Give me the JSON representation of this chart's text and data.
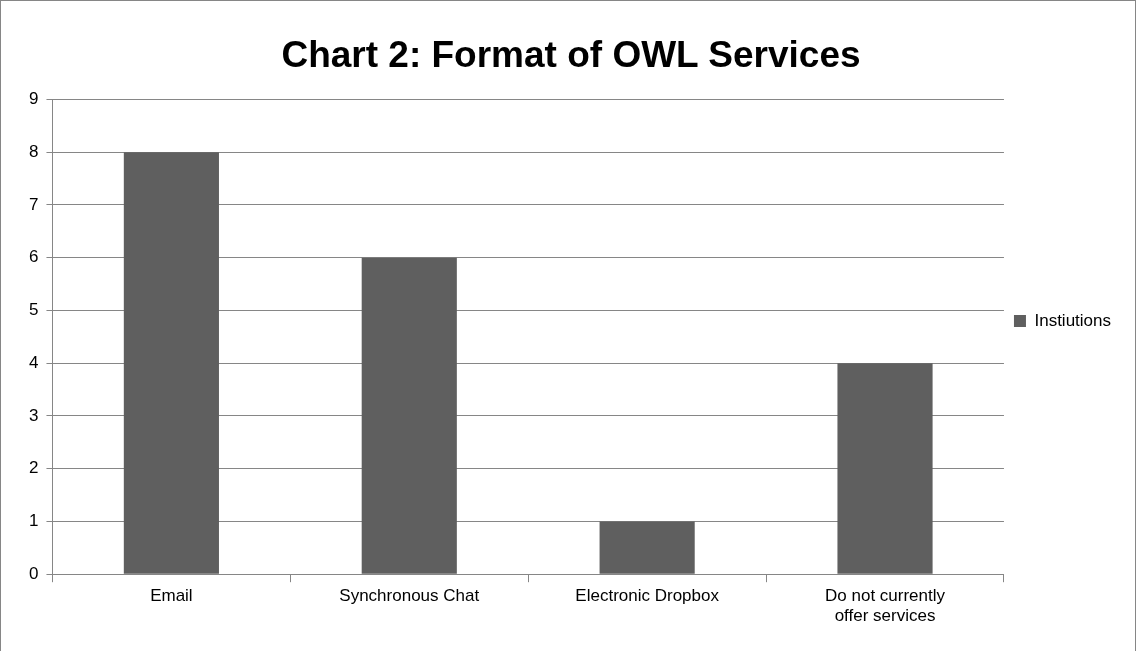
{
  "chart_data": {
    "type": "bar",
    "title": "Chart 2: Format of OWL Services",
    "categories": [
      "Email",
      "Synchronous Chat",
      "Electronic Dropbox",
      "Do not currently offer services"
    ],
    "series": [
      {
        "name": "Instiutions",
        "color": "#5f5f5f",
        "values": [
          8,
          6,
          1,
          4
        ]
      }
    ],
    "ylim": [
      0,
      9
    ],
    "yticks": [
      0,
      1,
      2,
      3,
      4,
      5,
      6,
      7,
      8,
      9
    ],
    "grid": "y",
    "legend": "right"
  }
}
